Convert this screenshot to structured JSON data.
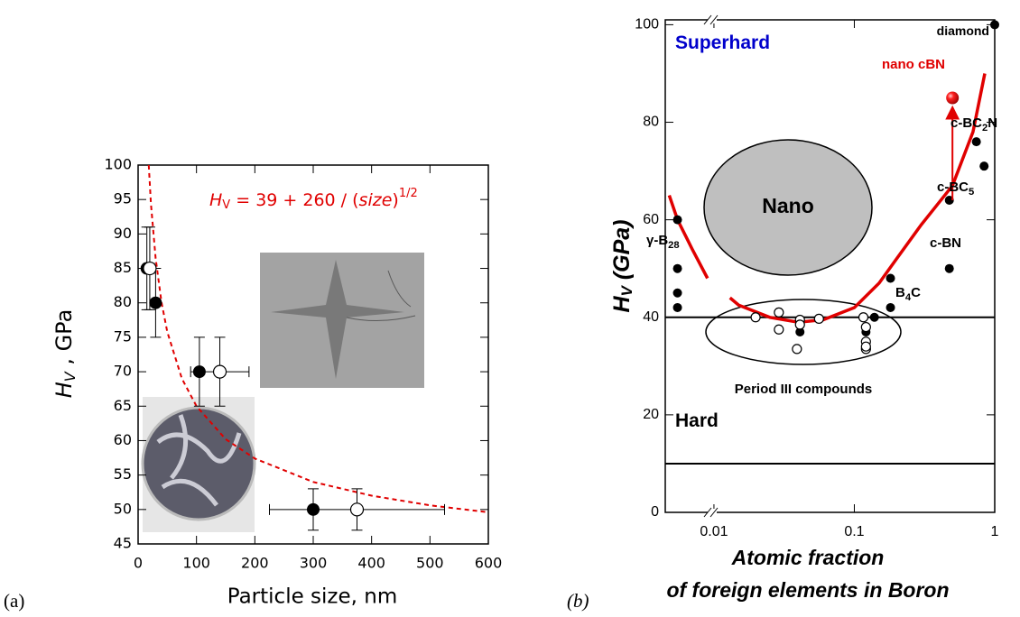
{
  "chart_data": [
    {
      "type": "scatter",
      "equation": [
        "H",
        "V",
        " = 39 + 260 / (",
        "size",
        ")",
        "1/2"
      ],
      "x_label": "Particle size, nm",
      "y_label": [
        "H",
        "V",
        " , GPa"
      ],
      "panel_label": "(a)",
      "xlim": [
        0,
        600
      ],
      "ylim": [
        45,
        100
      ],
      "xticks": [
        0,
        100,
        200,
        300,
        400,
        500,
        600
      ],
      "yticks": [
        45,
        50,
        55,
        60,
        65,
        70,
        75,
        80,
        85,
        90,
        95,
        100
      ],
      "series": [
        {
          "marker": "filled",
          "color": "#000000",
          "x": [
            15,
            30,
            105,
            300
          ],
          "values": [
            85,
            80,
            70,
            50
          ],
          "yerr": [
            6,
            5,
            5,
            3
          ]
        },
        {
          "marker": "open",
          "color": "#000000",
          "x": [
            20,
            140,
            375
          ],
          "values": [
            85,
            70,
            50
          ],
          "yerr": [
            6,
            5,
            3
          ],
          "xerr": [
            8,
            50,
            150
          ]
        }
      ],
      "fit": {
        "color": "#e00000",
        "x": [
          18.2,
          22,
          30,
          40,
          50,
          75,
          100,
          150,
          200,
          300,
          400,
          500,
          600
        ],
        "values": [
          100,
          94.4,
          86.5,
          80.1,
          75.8,
          69.0,
          65.0,
          60.2,
          57.4,
          54.0,
          52.0,
          50.6,
          49.6
        ]
      }
    },
    {
      "type": "scatter",
      "xscale": "log",
      "x_label": [
        "Atomic fraction",
        "of foreign elements in Boron"
      ],
      "y_label": [
        "H",
        "V",
        " (GPa)"
      ],
      "panel_label": "(b)",
      "xlim": [
        0.0045,
        1
      ],
      "ylim": [
        0,
        101
      ],
      "xticks": [
        0.01,
        0.1,
        1
      ],
      "yticks": [
        0,
        20,
        40,
        60,
        80,
        100
      ],
      "hlines": [
        40,
        10
      ],
      "series": [
        {
          "marker": "filled",
          "color": "#000000",
          "x": [
            0.0055,
            0.0055,
            0.0055,
            0.0055,
            0.041,
            0.121,
            0.121,
            0.139,
            0.181,
            0.181,
            0.475,
            0.475,
            0.74,
            0.84,
            1.0
          ],
          "values": [
            60,
            50,
            45,
            42,
            37,
            37,
            38,
            40,
            48,
            42,
            64,
            50,
            76,
            71,
            100
          ]
        },
        {
          "marker": "open",
          "color": "#000000",
          "x": [
            0.0198,
            0.029,
            0.029,
            0.041,
            0.041,
            0.039,
            0.056,
            0.116,
            0.121,
            0.121,
            0.121,
            0.121
          ],
          "values": [
            40,
            41,
            37.5,
            39.5,
            38.5,
            33.5,
            39.7,
            40,
            38,
            35,
            33.5,
            34
          ]
        },
        {
          "marker": "sphere",
          "color": "#ff0000",
          "x": [
            0.5
          ],
          "values": [
            85
          ]
        }
      ],
      "curve": {
        "color": "#e00000",
        "x": [
          0.0048,
          0.0055,
          0.007,
          0.009,
          0.0105,
          0.013,
          0.015,
          0.025,
          0.04,
          0.06,
          0.1,
          0.15,
          0.2,
          0.3,
          0.5,
          0.7,
          0.85
        ],
        "values": [
          65,
          60,
          54,
          48,
          null,
          44,
          42.5,
          40,
          39,
          39.5,
          42,
          47,
          52,
          59,
          67,
          78,
          90
        ]
      },
      "arrow": {
        "color": "#e00000",
        "x": 0.5,
        "from": 64,
        "to": 82
      },
      "annotations": [
        {
          "parts": [
            "Superhard"
          ],
          "color": "#0000cc"
        },
        {
          "parts": [
            "diamond"
          ],
          "color": "#000000"
        },
        {
          "parts": [
            "nano cBN"
          ],
          "color": "#e00000"
        },
        {
          "parts": [
            "c-BC",
            "2",
            "N"
          ],
          "color": "#000000"
        },
        {
          "parts": [
            "c-BC",
            "5"
          ],
          "color": "#000000"
        },
        {
          "parts": [
            "c-BN"
          ],
          "color": "#000000"
        },
        {
          "parts": [
            "B",
            "4",
            "C"
          ],
          "color": "#000000"
        },
        {
          "parts": [
            "γ-B",
            "28"
          ],
          "color": "#000000"
        },
        {
          "parts": [
            "Nano"
          ],
          "color": "#000000"
        },
        {
          "parts": [
            "Period III compounds"
          ],
          "color": "#000000"
        },
        {
          "parts": [
            "Hard"
          ],
          "color": "#000000"
        }
      ]
    }
  ]
}
